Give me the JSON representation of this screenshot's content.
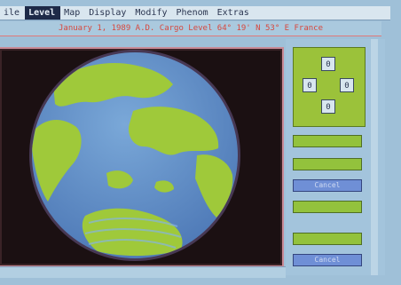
{
  "menubar": {
    "items": [
      {
        "label": "ile"
      },
      {
        "label": "Level",
        "active": true
      },
      {
        "label": "Map"
      },
      {
        "label": "Display"
      },
      {
        "label": "Modify"
      },
      {
        "label": "Phenom"
      },
      {
        "label": "Extras"
      }
    ]
  },
  "status": {
    "text": "January 1, 1989 A.D. Cargo Level 64° 19' N  53° E France"
  },
  "navpad": {
    "up": "0",
    "left": "0",
    "right": "0",
    "down": "0"
  },
  "buttons": {
    "button_1": "Cancel",
    "button_2": "Cancel"
  },
  "colors": {
    "ocean": "#6a98cc",
    "land": "#9fc93a",
    "space": "#1b1012",
    "accent": "#1e2a48"
  }
}
